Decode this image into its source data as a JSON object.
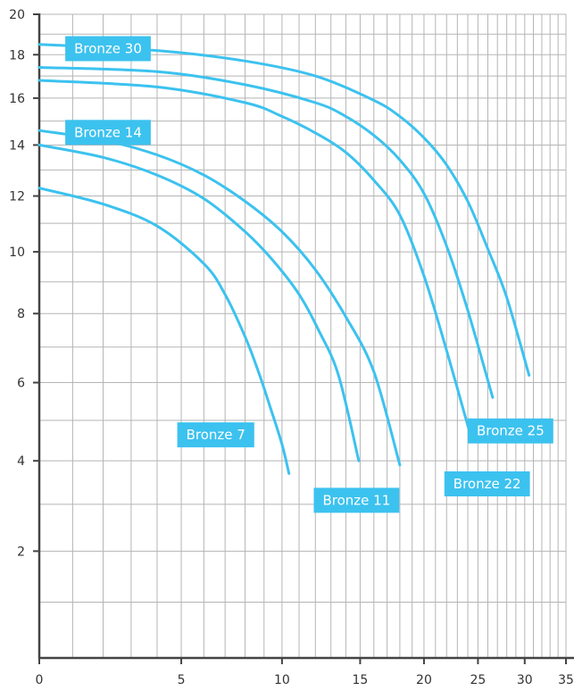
{
  "chart_data": {
    "type": "line",
    "title": "",
    "xlabel": "",
    "ylabel": "",
    "x_scale": "log(x+10)",
    "y_scale": "log(y+10)",
    "xlim": [
      0,
      35
    ],
    "ylim": [
      0,
      20
    ],
    "x_ticks": [
      0,
      5,
      10,
      15,
      20,
      25,
      30,
      35
    ],
    "y_ticks": [
      2,
      4,
      6,
      8,
      10,
      12,
      14,
      16,
      18,
      20
    ],
    "grid": true,
    "line_color": "#3cc2ef",
    "axis_color": "#444444",
    "grid_color": "#b5b5b5",
    "label_bg": "#3cc2ef",
    "label_text_color": "#ffffff",
    "series": [
      {
        "name": "Bronze 7",
        "x": [
          0,
          2,
          4,
          6,
          7,
          8,
          8.7,
          9.3,
          10,
          10.4
        ],
        "y": [
          12.3,
          11.7,
          10.9,
          9.6,
          8.6,
          7.3,
          6.3,
          5.4,
          4.4,
          3.7
        ]
      },
      {
        "name": "Bronze 11",
        "x": [
          0,
          2,
          4,
          6,
          8,
          9.5,
          11,
          12.2,
          13.5,
          14.9
        ],
        "y": [
          14.0,
          13.5,
          12.8,
          11.9,
          10.7,
          9.7,
          8.6,
          7.5,
          6.2,
          4.0
        ]
      },
      {
        "name": "Bronze 14",
        "x": [
          0,
          2,
          4,
          6,
          8,
          10,
          12,
          14,
          16,
          18
        ],
        "y": [
          14.6,
          14.2,
          13.6,
          12.8,
          11.8,
          10.7,
          9.4,
          7.9,
          6.3,
          3.9
        ]
      },
      {
        "name": "Bronze 22",
        "x": [
          0,
          4,
          8,
          10,
          12,
          14,
          16,
          18,
          20,
          22,
          24.4
        ],
        "y": [
          16.8,
          16.5,
          15.8,
          15.2,
          14.5,
          13.7,
          12.6,
          11.3,
          9.2,
          6.9,
          4.5
        ]
      },
      {
        "name": "Bronze 25",
        "x": [
          0,
          4,
          8,
          12,
          14,
          16,
          18,
          20,
          22,
          24,
          26.5
        ],
        "y": [
          17.4,
          17.2,
          16.6,
          15.8,
          15.2,
          14.4,
          13.4,
          12.1,
          10.2,
          8.1,
          5.6
        ]
      },
      {
        "name": "Bronze 30",
        "x": [
          0,
          4,
          8,
          12,
          16,
          18,
          20,
          22,
          24,
          26,
          28,
          30.5
        ],
        "y": [
          18.5,
          18.2,
          17.7,
          17.0,
          15.9,
          15.2,
          14.3,
          13.2,
          11.8,
          10.1,
          8.5,
          6.2
        ]
      }
    ],
    "labels": [
      {
        "text": "Bronze 30",
        "x": 0.77,
        "y": 18.9
      },
      {
        "text": "Bronze 14",
        "x": 0.77,
        "y": 15.05
      },
      {
        "text": "Bronze 7",
        "x": 4.83,
        "y": 4.95
      },
      {
        "text": "Bronze 11",
        "x": 11.9,
        "y": 3.37
      },
      {
        "text": "Bronze 22",
        "x": 21.8,
        "y": 3.75
      },
      {
        "text": "Bronze 25",
        "x": 24.0,
        "y": 5.05
      }
    ]
  }
}
